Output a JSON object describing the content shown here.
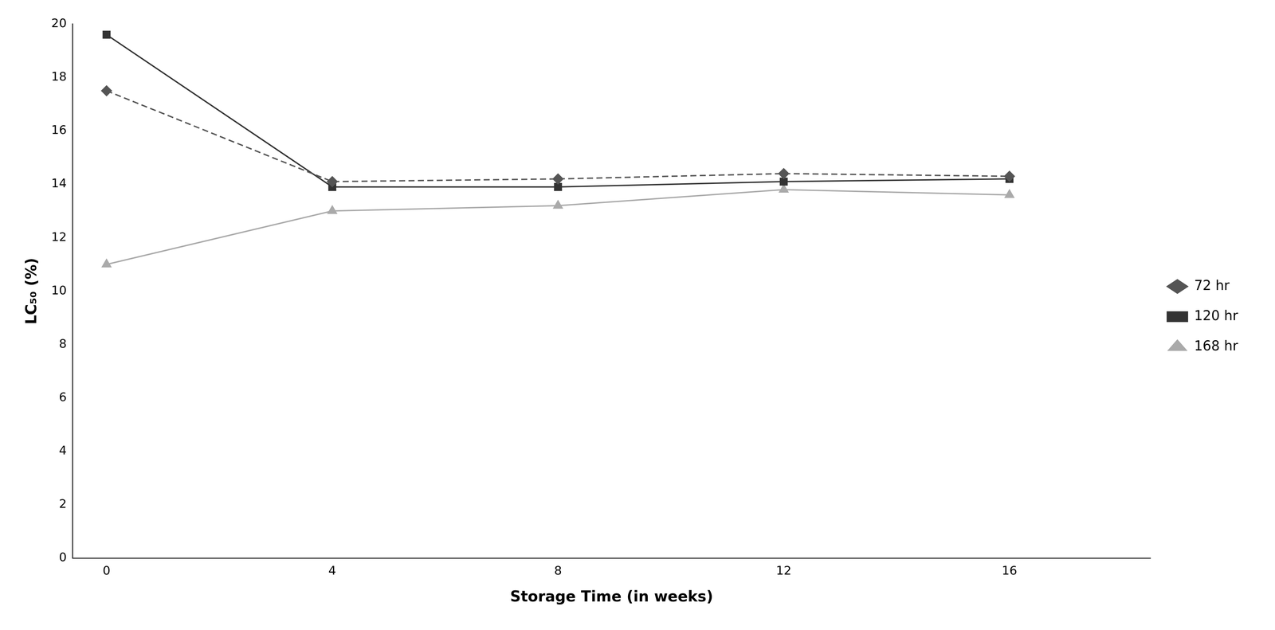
{
  "chart_data": {
    "type": "line",
    "x": [
      0,
      4,
      8,
      12,
      16
    ],
    "series": [
      {
        "name": "72 hr",
        "color": "#555555",
        "marker": "diamond",
        "line_style": "dashed",
        "values": [
          17.5,
          14.1,
          14.2,
          14.4,
          14.3
        ]
      },
      {
        "name": "120 hr",
        "color": "#333333",
        "marker": "square",
        "line_style": "solid",
        "values": [
          19.6,
          13.9,
          13.9,
          14.1,
          14.2
        ]
      },
      {
        "name": "168 hr",
        "color": "#aaaaaa",
        "marker": "triangle",
        "line_style": "solid",
        "values": [
          11.0,
          13.0,
          13.2,
          13.8,
          13.6
        ]
      }
    ],
    "x_label": "Storage Time (in weeks)",
    "y_label": "LC₅₀ (%)",
    "xlim": [
      -0.6,
      18.5
    ],
    "ylim": [
      0,
      20
    ],
    "xticks": [
      0,
      4,
      8,
      12,
      16
    ],
    "yticks": [
      0,
      2,
      4,
      6,
      8,
      10,
      12,
      14,
      16,
      18,
      20
    ],
    "grid": false,
    "legend": "right"
  }
}
